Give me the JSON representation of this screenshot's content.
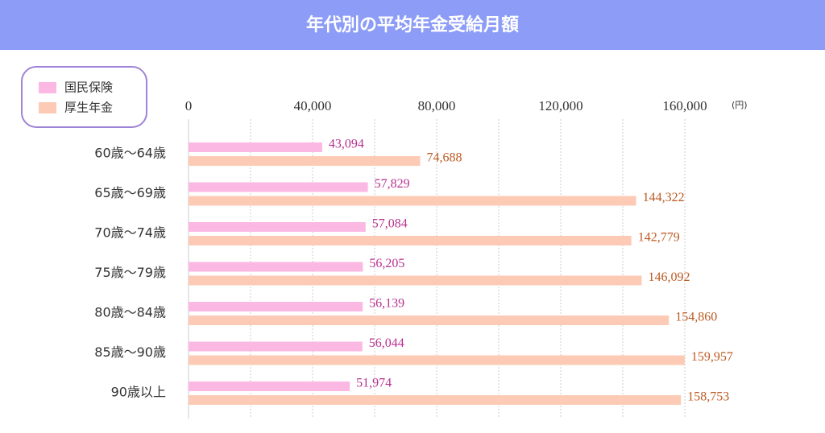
{
  "chart_data": {
    "type": "bar",
    "orientation": "horizontal",
    "title": "年代別の平均年金受給月額",
    "unit_label": "(円)",
    "categories": [
      "60歳〜64歳",
      "65歳〜69歳",
      "70歳〜74歳",
      "75歳〜79歳",
      "80歳〜84歳",
      "85歳〜90歳",
      "90歳以上"
    ],
    "series": [
      {
        "name": "国民保険",
        "color": "#fbb8e2",
        "label_color": "#b8308f",
        "values": [
          43094,
          57829,
          57084,
          56205,
          56139,
          56044,
          51974
        ],
        "value_labels": [
          "43,094",
          "57,829",
          "57,084",
          "56,205",
          "56,139",
          "56,044",
          "51,974"
        ]
      },
      {
        "name": "厚生年金",
        "color": "#fdcbb5",
        "label_color": "#bb5a22",
        "values": [
          74688,
          144322,
          142779,
          146092,
          154860,
          159957,
          158753
        ],
        "value_labels": [
          "74,688",
          "144,322",
          "142,779",
          "146,092",
          "154,860",
          "159,957",
          "158,753"
        ]
      }
    ],
    "xlim": [
      0,
      160000
    ],
    "xticks": [
      0,
      {
        "value": 40000,
        "label": "40,000"
      },
      {
        "value": 80000,
        "label": "80,000"
      },
      {
        "value": 120000,
        "label": "120,000"
      },
      {
        "value": 160000,
        "label": "160,000"
      }
    ],
    "grid_xticks": [
      0,
      20000,
      40000,
      60000,
      80000,
      100000,
      120000,
      140000,
      160000
    ],
    "grid": true
  }
}
